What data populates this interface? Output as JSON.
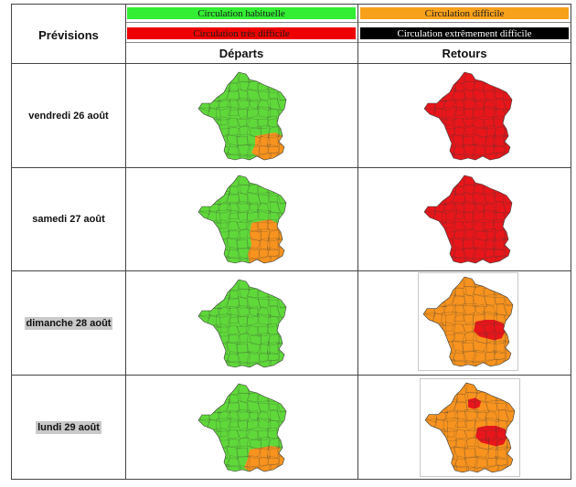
{
  "header": {
    "previsions": "Prévisions",
    "departs": "Départs",
    "retours": "Retours"
  },
  "legend": [
    {
      "label": "Circulation habituelle",
      "bg": "#33ee33",
      "fg": "#1a1a1a"
    },
    {
      "label": "Circulation difficile",
      "bg": "#f7a11a",
      "fg": "#1a1a1a"
    },
    {
      "label": "Circulation très difficile",
      "bg": "#ee0000",
      "fg": "#1a1a1a"
    },
    {
      "label": "Circulation extrêmement difficile",
      "bg": "#000000",
      "fg": "#ffffff"
    }
  ],
  "colors": {
    "green": "#5fd93a",
    "orange": "#f7931e",
    "red": "#e8161a",
    "border_lines": "#3a3a3a"
  },
  "rows": [
    {
      "date": "vendredi 26 août",
      "highlight": false,
      "depart": {
        "base": "green",
        "zones": [
          "southeast-coast"
        ]
      },
      "retour": {
        "base": "red",
        "zones": []
      }
    },
    {
      "date": "samedi 27 août",
      "highlight": false,
      "depart": {
        "base": "green",
        "zones": [
          "southeast-large"
        ]
      },
      "retour": {
        "base": "red",
        "zones": []
      }
    },
    {
      "date": "dimanche 28 août",
      "highlight": true,
      "depart": {
        "base": "green",
        "zones": []
      },
      "retour": {
        "base": "orange",
        "zones": [
          "rhone-alpes"
        ]
      }
    },
    {
      "date": "lundi 29 août",
      "highlight": true,
      "depart": {
        "base": "green",
        "zones": [
          "southeast-coast-wide"
        ]
      },
      "retour": {
        "base": "orange",
        "zones": [
          "paris",
          "rhone-alpes"
        ]
      }
    }
  ]
}
